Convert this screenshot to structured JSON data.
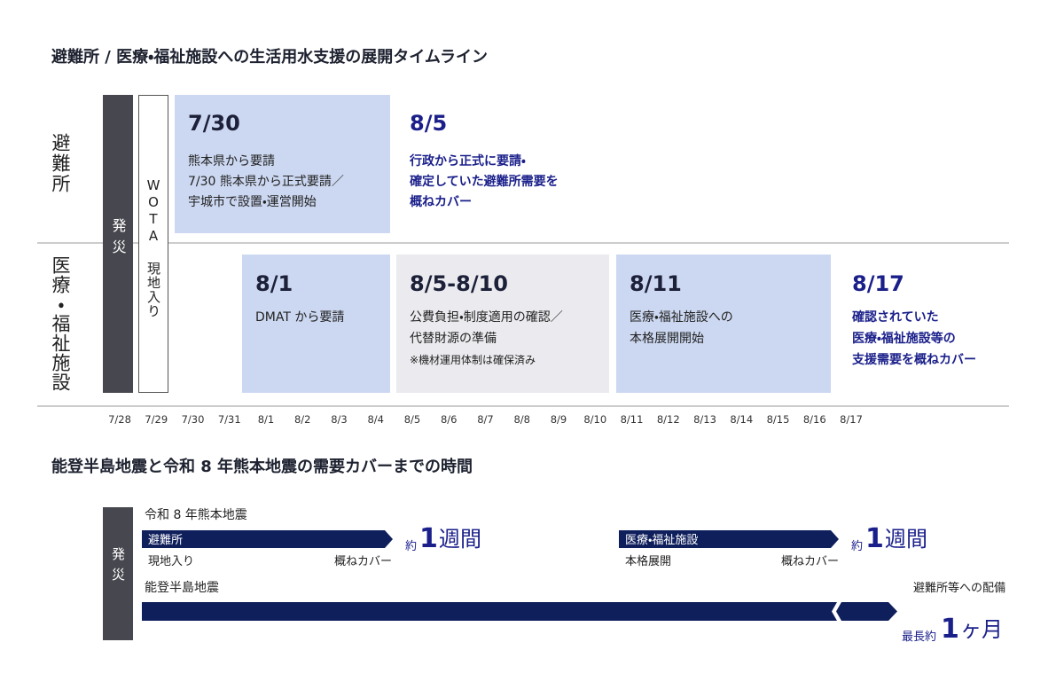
{
  "timeline": {
    "title": "避難所 / 医療・福祉施設への生活用水支援の展開タイムライン",
    "rows": [
      "避難所",
      "医療・福祉施設"
    ],
    "markers": [
      "発災",
      "WOTA 現地入り"
    ],
    "dates": [
      "7/28",
      "7/29",
      "7/30",
      "7/31",
      "8/1",
      "8/2",
      "8/3",
      "8/4",
      "8/5",
      "8/6",
      "8/7",
      "8/8",
      "8/9",
      "8/10",
      "8/11",
      "8/12",
      "8/13",
      "8/14",
      "8/15",
      "8/16",
      "8/17"
    ],
    "events": [
      {
        "date": "7/30",
        "lines": [
          "熊本県から要請",
          "7/30 熊本県から正式要請／",
          "宇城市で設置・運営開始"
        ]
      },
      {
        "date": "8/5",
        "lines": [
          "行政から正式に要請・",
          "確定していた避難所需要を",
          "概ねカバー"
        ]
      },
      {
        "date": "8/1",
        "lines": [
          "DMAT から要請"
        ]
      },
      {
        "date": "8/5-8/10",
        "lines": [
          "公費負担・制度適用の確認／",
          "代替財源の準備"
        ],
        "note": "※機材運用体制は確保済み"
      },
      {
        "date": "8/11",
        "lines": [
          "医療・福祉施設への",
          "本格展開開始"
        ]
      },
      {
        "date": "8/17",
        "lines": [
          "確認されていた",
          "医療・福祉施設等の",
          "支援需要を概ねカバー"
        ]
      }
    ]
  },
  "comparison": {
    "title": "能登半島地震と令和 8 年熊本地震の需要カバーまでの時間",
    "marker": "発災",
    "kumamoto": {
      "label": "令和 8 年熊本地震",
      "bars": [
        {
          "label": "避難所",
          "start": "現地入り",
          "end": "概ねカバー",
          "duration": {
            "prefix": "約",
            "number": 1,
            "unit": "週間"
          }
        },
        {
          "label": "医療・福祉施設",
          "start": "本格展開",
          "end": "概ねカバー",
          "duration": {
            "prefix": "約",
            "number": 1,
            "unit": "週間"
          }
        }
      ]
    },
    "noto": {
      "label": "能登半島地震",
      "caption": "避難所等への配備",
      "duration": {
        "prefix": "最長約",
        "number": 1,
        "unit": "ヶ月"
      }
    }
  }
}
